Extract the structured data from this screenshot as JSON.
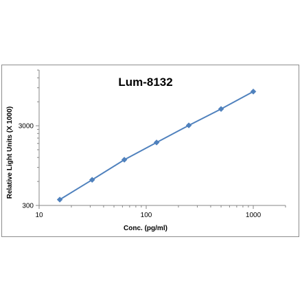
{
  "chart_data": {
    "type": "line",
    "title": "Lum-8132",
    "xlabel": "Conc. (pg/ml)",
    "ylabel": "Relative Light Units (X 1000)",
    "x_scale": "log",
    "y_scale": "log",
    "xlim": [
      10,
      2000
    ],
    "ylim": [
      300,
      15000
    ],
    "x_ticks": [
      "10",
      "100",
      "1000"
    ],
    "y_ticks": [
      "300",
      "3000"
    ],
    "grid": false,
    "legend": "none",
    "series": [
      {
        "x": [
          15.6,
          31.25,
          62.5,
          125,
          250,
          500,
          1000
        ],
        "y": [
          355,
          629,
          1124,
          1851,
          3035,
          4871,
          8061
        ],
        "color": "#4f81bd",
        "marker": "diamond"
      }
    ]
  }
}
